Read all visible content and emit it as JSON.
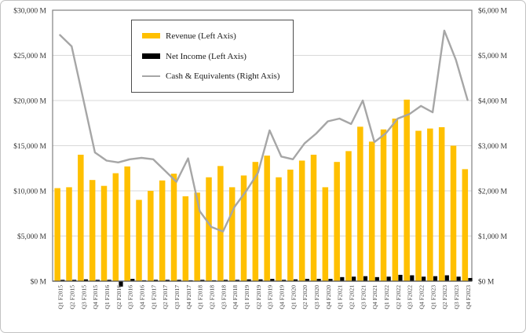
{
  "figure": {
    "background": "#ffffff",
    "outer_border_color": "#c2c2c2",
    "plot_border_color": "#808080",
    "gridline_color": "#d9d9d9",
    "axis_label_color": "#333333",
    "x_label_color": "#404040"
  },
  "legend": {
    "position": "top-left-inside",
    "items": [
      {
        "label": "Revenue (Left Axis)",
        "swatch": "bar-swatch",
        "color": "#FFC000"
      },
      {
        "label": "Net Income (Left Axis)",
        "swatch": "bar-swatch",
        "color": "#000000"
      },
      {
        "label": "Cash & Equivalents (Right Axis)",
        "swatch": "line-swatch",
        "color": "#a6a6a6"
      }
    ]
  },
  "chart_data": {
    "type": "bar",
    "subtype": "combo-bar-line-dual-axis",
    "grid": true,
    "categories": [
      "Q1 F2015",
      "Q2 F2015",
      "Q3 F2015",
      "Q4 F2015",
      "Q1 F2016",
      "Q2 F2016",
      "Q3 F2016",
      "Q4 F2016",
      "Q1 F2017",
      "Q2 F2017",
      "Q3 F2017",
      "Q4 F2017",
      "Q1 F2018",
      "Q2 F2018",
      "Q3 F2018",
      "Q4 F2018",
      "Q1 F2019",
      "Q2 F2019",
      "Q3 F2019",
      "Q4 F2019",
      "Q1 F2020",
      "Q2 F2020",
      "Q3 F2020",
      "Q4 F2020",
      "Q1 F2021",
      "Q2 F2021",
      "Q3 F2021",
      "Q4 F2021",
      "Q1 F2022",
      "Q2 F2022",
      "Q3 F2022",
      "Q4 F2022",
      "Q1 F2023",
      "Q2 F2023",
      "Q3 F2023",
      "Q4 F2023"
    ],
    "series": [
      {
        "name": "Revenue (Left Axis)",
        "type": "bar",
        "axis": "left",
        "color": "#FFC000",
        "values": [
          10300,
          10400,
          14000,
          11200,
          10550,
          11950,
          12700,
          9000,
          10000,
          11150,
          11900,
          9400,
          9800,
          11500,
          12750,
          10400,
          11700,
          13200,
          13900,
          11500,
          12350,
          13350,
          14000,
          10400,
          13200,
          14400,
          17100,
          15450,
          16800,
          18000,
          20100,
          16650,
          16900,
          17050,
          15000,
          12400
        ]
      },
      {
        "name": "Net Income (Left Axis)",
        "type": "bar",
        "axis": "left",
        "color": "#000000",
        "values": [
          150,
          150,
          200,
          150,
          150,
          -600,
          250,
          100,
          150,
          150,
          150,
          100,
          150,
          100,
          150,
          150,
          200,
          200,
          250,
          150,
          200,
          250,
          250,
          250,
          450,
          500,
          550,
          450,
          500,
          700,
          650,
          500,
          550,
          650,
          500,
          350
        ]
      },
      {
        "name": "Cash & Equivalents (Right Axis)",
        "type": "line",
        "axis": "right",
        "color": "#a6a6a6",
        "values": [
          5450,
          5200,
          4030,
          2850,
          2670,
          2630,
          2700,
          2730,
          2700,
          2450,
          2200,
          2720,
          1550,
          1200,
          1100,
          1650,
          2000,
          2400,
          3340,
          2760,
          2700,
          3050,
          3270,
          3540,
          3600,
          3480,
          4000,
          3080,
          3280,
          3600,
          3700,
          3880,
          3740,
          5550,
          4900,
          4010
        ]
      }
    ],
    "left_axis": {
      "min": 0,
      "max": 30000,
      "ticks": [
        "$0 M",
        "$5,000 M",
        "$10,000 M",
        "$15,000 M",
        "$20,000 M",
        "$25,000 M",
        "$30,000 M"
      ]
    },
    "right_axis": {
      "min": 0,
      "max": 6000,
      "ticks": [
        "$0 M",
        "$1,000 M",
        "$2,000 M",
        "$3,000 M",
        "$4,000 M",
        "$5,000 M",
        "$6,000 M"
      ]
    }
  }
}
